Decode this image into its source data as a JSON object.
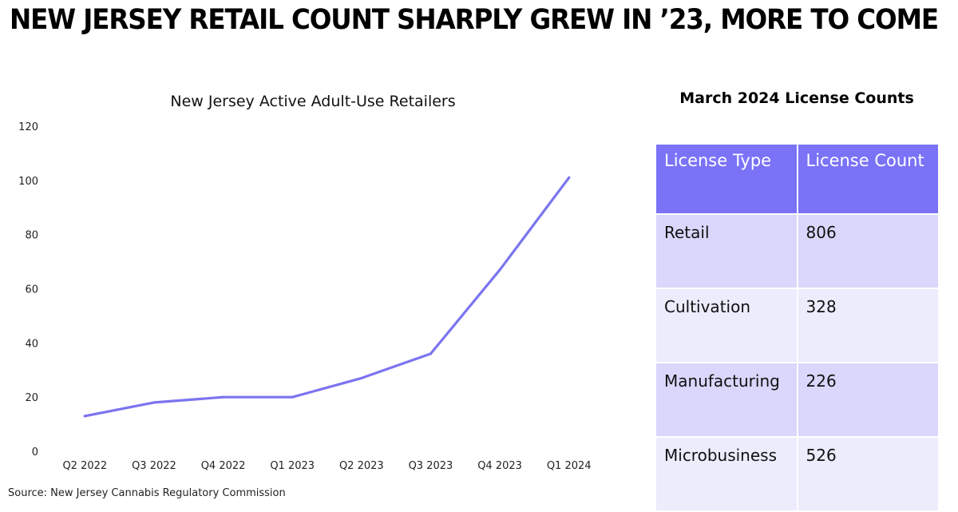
{
  "headline": "NEW JERSEY RETAIL COUNT SHARPLY GREW IN ’23, MORE TO COME",
  "source": "Source: New Jersey Cannabis Regulatory Commission",
  "chart_data": {
    "type": "line",
    "title": "New Jersey Active Adult-Use Retailers",
    "xlabel": "",
    "ylabel": "",
    "categories": [
      "Q2 2022",
      "Q3 2022",
      "Q4 2022",
      "Q1 2023",
      "Q2 2023",
      "Q3 2023",
      "Q4 2023",
      "Q1 2024"
    ],
    "values": [
      13,
      18,
      20,
      20,
      27,
      36,
      67,
      101
    ],
    "ylim": [
      0,
      120
    ],
    "yticks": [
      0,
      20,
      40,
      60,
      80,
      100,
      120
    ],
    "grid": false,
    "legend": "none",
    "color": "#7b74f0"
  },
  "table": {
    "title": "March 2024 License Counts",
    "headers": [
      "License Type",
      "License Count"
    ],
    "rows": [
      {
        "type": "Retail",
        "count": "806"
      },
      {
        "type": "Cultivation",
        "count": "328"
      },
      {
        "type": "Manufacturing",
        "count": "226"
      },
      {
        "type": "Microbusiness",
        "count": "526"
      }
    ],
    "header_color": "#7a72f7",
    "row_color_odd": "#d9d7fb",
    "row_color_even": "#ececfd"
  }
}
